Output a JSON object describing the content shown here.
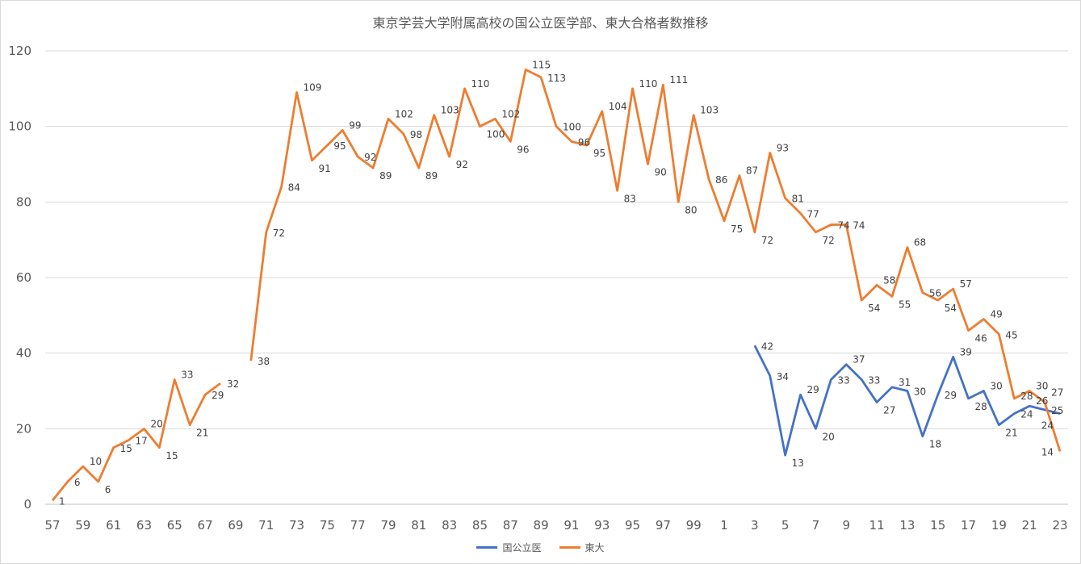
{
  "chart_data": {
    "type": "line",
    "title": "東京学芸大学附属高校の国公立医学部、東大合格者数推移",
    "xlabel": "",
    "ylabel": "",
    "ylim": [
      0,
      120
    ],
    "yticks": [
      0,
      20,
      40,
      60,
      80,
      100,
      120
    ],
    "grid": true,
    "legend_position": "bottom",
    "categories": [
      "57",
      "58",
      "59",
      "60",
      "61",
      "62",
      "63",
      "64",
      "65",
      "66",
      "67",
      "68",
      "69",
      "70",
      "71",
      "72",
      "73",
      "74",
      "75",
      "76",
      "77",
      "78",
      "79",
      "80",
      "81",
      "82",
      "83",
      "84",
      "85",
      "86",
      "87",
      "88",
      "89",
      "90",
      "91",
      "92",
      "93",
      "94",
      "95",
      "96",
      "97",
      "98",
      "99",
      "0",
      "1",
      "2",
      "3",
      "4",
      "5",
      "6",
      "7",
      "8",
      "9",
      "10",
      "11",
      "12",
      "13",
      "14",
      "15",
      "16",
      "17",
      "18",
      "19",
      "20",
      "21",
      "22",
      "23"
    ],
    "series": [
      {
        "name": "国公立医",
        "color": "#4472c4",
        "values": [
          null,
          null,
          null,
          null,
          null,
          null,
          null,
          null,
          null,
          null,
          null,
          null,
          null,
          null,
          null,
          null,
          null,
          null,
          null,
          null,
          null,
          null,
          null,
          null,
          null,
          null,
          null,
          null,
          null,
          null,
          null,
          null,
          null,
          null,
          null,
          null,
          null,
          null,
          null,
          null,
          null,
          null,
          null,
          null,
          null,
          null,
          42,
          34,
          13,
          29,
          20,
          33,
          37,
          33,
          27,
          31,
          30,
          18,
          29,
          39,
          28,
          30,
          21,
          24,
          26,
          25,
          24
        ]
      },
      {
        "name": "東大",
        "color": "#ed7d31",
        "values": [
          1,
          6,
          10,
          6,
          15,
          17,
          20,
          15,
          33,
          21,
          29,
          32,
          null,
          38,
          72,
          84,
          109,
          91,
          95,
          99,
          92,
          89,
          102,
          98,
          89,
          103,
          92,
          110,
          100,
          102,
          96,
          115,
          113,
          100,
          96,
          95,
          104,
          83,
          110,
          90,
          111,
          80,
          103,
          86,
          75,
          87,
          72,
          93,
          81,
          77,
          72,
          74,
          74,
          54,
          58,
          55,
          68,
          56,
          54,
          57,
          46,
          49,
          45,
          28,
          30,
          27,
          14
        ]
      }
    ]
  }
}
